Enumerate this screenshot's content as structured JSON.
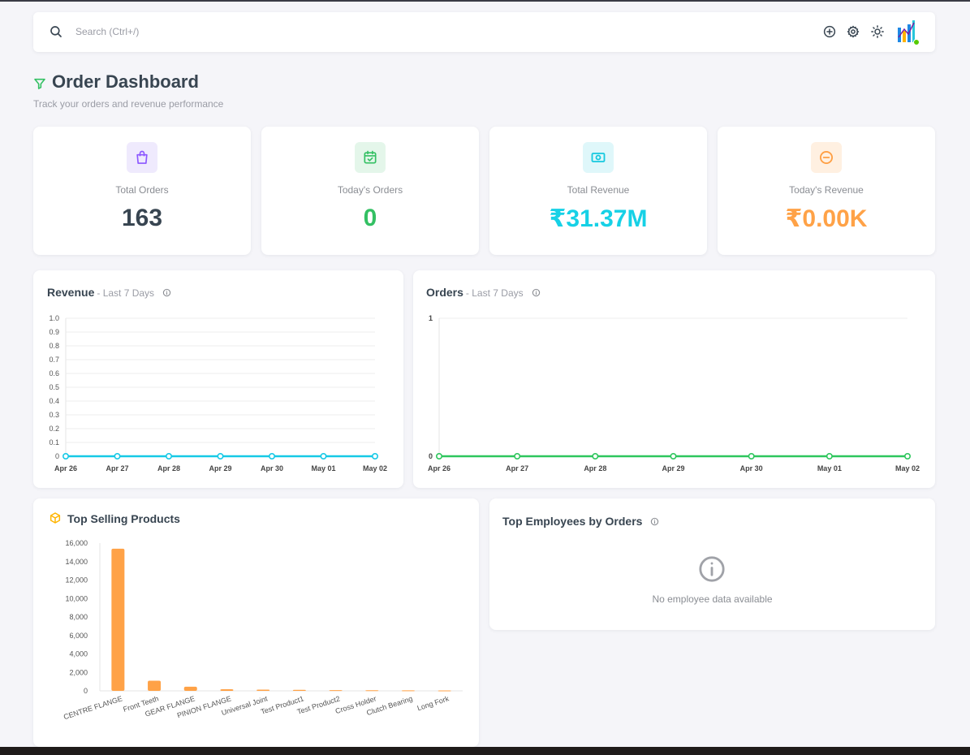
{
  "navbar": {
    "search_placeholder": "Search (Ctrl+/)"
  },
  "page": {
    "title": "Order Dashboard",
    "subtitle": "Track your orders and revenue performance"
  },
  "stats": [
    {
      "label": "Total Orders",
      "value": "163",
      "color": "#384551",
      "icon": "shopping-bag-icon",
      "icon_color": "#8c57ff",
      "icon_bg": "#efeafd"
    },
    {
      "label": "Today's Orders",
      "value": "0",
      "color": "#33c063",
      "icon": "calendar-check-icon",
      "icon_color": "#33c063",
      "icon_bg": "#e4f6ea"
    },
    {
      "label": "Total Revenue",
      "value": "₹31.37M",
      "color": "#16d1e6",
      "icon": "cash-icon",
      "icon_color": "#16c9df",
      "icon_bg": "#dff7fa"
    },
    {
      "label": "Today's Revenue",
      "value": "₹0.00K",
      "color": "#ffa247",
      "icon": "minus-circle-icon",
      "icon_color": "#ff9f43",
      "icon_bg": "#fff0e1"
    }
  ],
  "revenue_card": {
    "title": "Revenue",
    "subtitle": "- Last 7 Days"
  },
  "orders_card": {
    "title": "Orders",
    "subtitle": "- Last 7 Days"
  },
  "products_card": {
    "title": "Top Selling Products"
  },
  "employees_card": {
    "title": "Top Employees by Orders",
    "empty_message": "No employee data available"
  },
  "chart_data": [
    {
      "type": "line",
      "name": "revenue",
      "x": [
        "Apr 26",
        "Apr 27",
        "Apr 28",
        "Apr 29",
        "Apr 30",
        "May 01",
        "May 02"
      ],
      "values": [
        0,
        0,
        0,
        0,
        0,
        0,
        0
      ],
      "ylim": [
        0,
        1
      ],
      "yticks": [
        "0",
        "0.1",
        "0.2",
        "0.3",
        "0.4",
        "0.5",
        "0.6",
        "0.7",
        "0.8",
        "0.9",
        "1.0"
      ],
      "color": "#16c9e6",
      "grid": true
    },
    {
      "type": "line",
      "name": "orders",
      "x": [
        "Apr 26",
        "Apr 27",
        "Apr 28",
        "Apr 29",
        "Apr 30",
        "May 01",
        "May 02"
      ],
      "values": [
        0,
        0,
        0,
        0,
        0,
        0,
        0
      ],
      "ylim": [
        0,
        1
      ],
      "yticks": [
        "0",
        "1"
      ],
      "color": "#2ec65d",
      "grid": true
    },
    {
      "type": "bar",
      "name": "top-selling-products",
      "categories": [
        "CENTRE FLANGE",
        "Front Teeth",
        "GEAR FLANGE",
        "PINION FLANGE",
        "Universal Joint",
        "Test Product1",
        "Test Product2",
        "Cross Holder",
        "Clutch Bearing",
        "Long Fork"
      ],
      "values": [
        15400,
        1100,
        450,
        180,
        130,
        110,
        80,
        70,
        60,
        40
      ],
      "ylim": [
        0,
        16000
      ],
      "yticks": [
        "0",
        "2,000",
        "4,000",
        "6,000",
        "8,000",
        "10,000",
        "12,000",
        "14,000",
        "16,000"
      ],
      "color": "#ffa247",
      "grid": false
    }
  ]
}
